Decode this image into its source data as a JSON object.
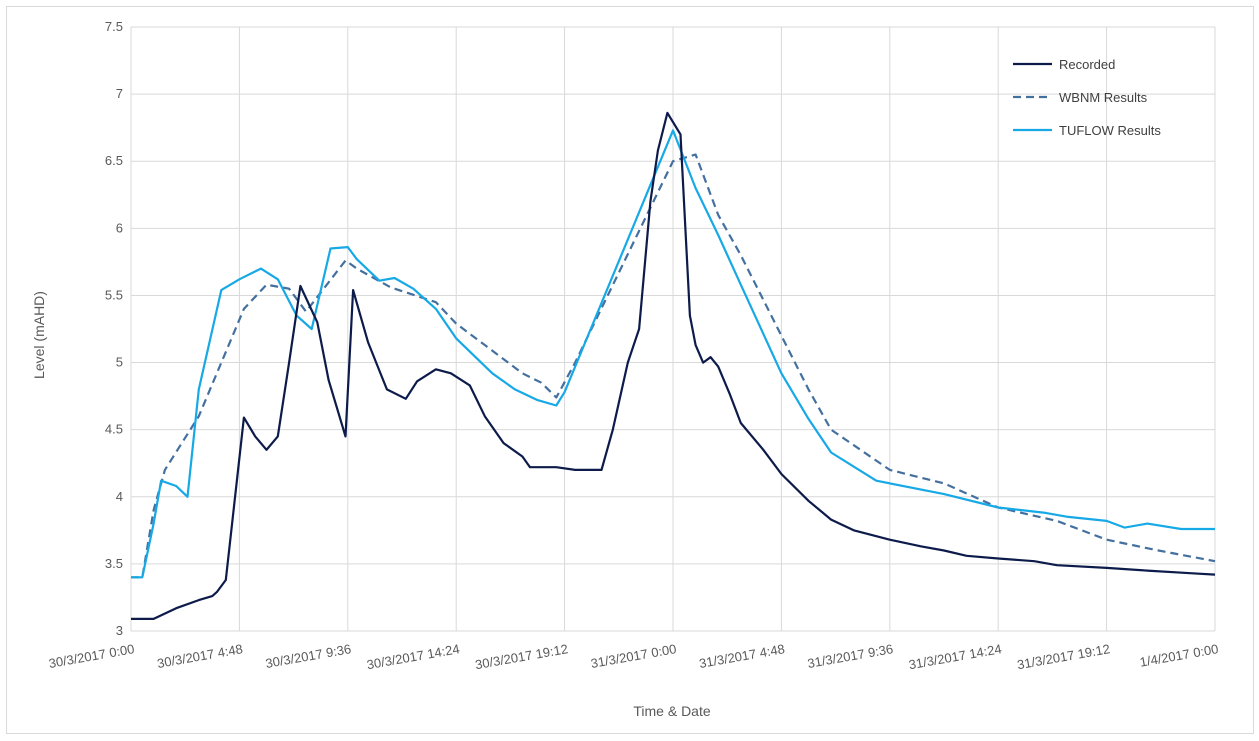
{
  "chart_data": {
    "type": "line",
    "xlabel": "Time & Date",
    "ylabel": "Level (mAHD)",
    "ylim": [
      3,
      7.5
    ],
    "yticks": [
      "3",
      "3.5",
      "4",
      "4.5",
      "5",
      "5.5",
      "6",
      "6.5",
      "7",
      "7.5"
    ],
    "xlim": [
      "30/3/2017 0:00",
      "1/4/2017 0:00"
    ],
    "xtick_labels": [
      "30/3/2017 0:00",
      "30/3/2017 4:48",
      "30/3/2017 9:36",
      "30/3/2017 14:24",
      "30/3/2017 19:12",
      "31/3/2017 0:00",
      "31/3/2017 4:48",
      "31/3/2017 9:36",
      "31/3/2017 14:24",
      "31/3/2017 19:12",
      "1/4/2017 0:00"
    ],
    "grid": true,
    "legend_position": "top-right",
    "series": [
      {
        "name": "Recorded",
        "color": "#0d1b4b",
        "style": "solid",
        "x": [
          "30/3/2017 0:00",
          "30/3/2017 1:00",
          "30/3/2017 2:00",
          "30/3/2017 3:00",
          "30/3/2017 3:36",
          "30/3/2017 3:48",
          "30/3/2017 4:12",
          "30/3/2017 5:00",
          "30/3/2017 5:30",
          "30/3/2017 6:00",
          "30/3/2017 6:30",
          "30/3/2017 7:00",
          "30/3/2017 7:30",
          "30/3/2017 8:15",
          "30/3/2017 8:45",
          "30/3/2017 9:30",
          "30/3/2017 9:50",
          "30/3/2017 10:30",
          "30/3/2017 11:20",
          "30/3/2017 12:10",
          "30/3/2017 12:40",
          "30/3/2017 13:30",
          "30/3/2017 14:10",
          "30/3/2017 15:00",
          "30/3/2017 15:40",
          "30/3/2017 16:30",
          "30/3/2017 17:20",
          "30/3/2017 17:40",
          "30/3/2017 18:50",
          "30/3/2017 19:40",
          "30/3/2017 20:50",
          "30/3/2017 21:20",
          "30/3/2017 22:00",
          "30/3/2017 22:30",
          "30/3/2017 23:00",
          "30/3/2017 23:20",
          "30/3/2017 23:45",
          "31/3/2017 0:20",
          "31/3/2017 0:45",
          "31/3/2017 1:00",
          "31/3/2017 1:20",
          "31/3/2017 1:40",
          "31/3/2017 2:00",
          "31/3/2017 2:30",
          "31/3/2017 3:00",
          "31/3/2017 4:00",
          "31/3/2017 4:48",
          "31/3/2017 6:00",
          "31/3/2017 7:00",
          "31/3/2017 8:00",
          "31/3/2017 9:36",
          "31/3/2017 11:00",
          "31/3/2017 12:00",
          "31/3/2017 13:00",
          "31/3/2017 14:24",
          "31/3/2017 16:00",
          "31/3/2017 17:00",
          "31/3/2017 19:12",
          "31/3/2017 21:00",
          "31/3/2017 23:00",
          "1/4/2017 0:00"
        ],
        "y": [
          3.09,
          3.09,
          3.17,
          3.23,
          3.26,
          3.29,
          3.38,
          4.59,
          4.45,
          4.35,
          4.45,
          5.0,
          5.57,
          5.3,
          4.87,
          4.45,
          5.54,
          5.15,
          4.8,
          4.73,
          4.86,
          4.95,
          4.92,
          4.83,
          4.6,
          4.4,
          4.3,
          4.22,
          4.22,
          4.2,
          4.2,
          4.5,
          5.0,
          5.25,
          6.2,
          6.58,
          6.86,
          6.7,
          5.35,
          5.13,
          5.0,
          5.04,
          4.97,
          4.77,
          4.55,
          4.35,
          4.17,
          3.97,
          3.83,
          3.75,
          3.68,
          3.63,
          3.6,
          3.56,
          3.54,
          3.52,
          3.49,
          3.47,
          3.45,
          3.43,
          3.42
        ]
      },
      {
        "name": "WBNM Results",
        "color": "#44709f",
        "style": "dashed",
        "x": [
          "30/3/2017 0:00",
          "30/3/2017 0:30",
          "30/3/2017 1:00",
          "30/3/2017 1:30",
          "30/3/2017 3:00",
          "30/3/2017 5:00",
          "30/3/2017 6:00",
          "30/3/2017 7:00",
          "30/3/2017 7:45",
          "30/3/2017 9:30",
          "30/3/2017 10:00",
          "30/3/2017 11:30",
          "30/3/2017 13:30",
          "30/3/2017 14:24",
          "30/3/2017 17:20",
          "30/3/2017 18:10",
          "30/3/2017 18:50",
          "30/3/2017 19:40",
          "31/3/2017 0:00",
          "31/3/2017 1:00",
          "31/3/2017 2:00",
          "31/3/2017 3:00",
          "31/3/2017 4:48",
          "31/3/2017 6:00",
          "31/3/2017 7:00",
          "31/3/2017 9:36",
          "31/3/2017 12:00",
          "31/3/2017 14:24",
          "31/3/2017 17:00",
          "31/3/2017 19:12",
          "31/3/2017 21:30",
          "1/4/2017 0:00"
        ],
        "y": [
          3.4,
          3.4,
          3.9,
          4.2,
          4.6,
          5.4,
          5.58,
          5.55,
          5.38,
          5.76,
          5.7,
          5.56,
          5.45,
          5.29,
          4.92,
          4.85,
          4.74,
          5.0,
          6.5,
          6.55,
          6.1,
          5.8,
          5.2,
          4.8,
          4.5,
          4.2,
          4.1,
          3.92,
          3.82,
          3.68,
          3.6,
          3.52
        ]
      },
      {
        "name": "TUFLOW Results",
        "color": "#17a9e6",
        "style": "solid",
        "x": [
          "30/3/2017 0:00",
          "30/3/2017 0:30",
          "30/3/2017 1:00",
          "30/3/2017 1:20",
          "30/3/2017 2:00",
          "30/3/2017 2:30",
          "30/3/2017 3:00",
          "30/3/2017 4:00",
          "30/3/2017 4:48",
          "30/3/2017 5:45",
          "30/3/2017 6:30",
          "30/3/2017 7:20",
          "30/3/2017 8:00",
          "30/3/2017 8:50",
          "30/3/2017 9:36",
          "30/3/2017 10:00",
          "30/3/2017 11:00",
          "30/3/2017 11:40",
          "30/3/2017 12:30",
          "30/3/2017 13:30",
          "30/3/2017 14:24",
          "30/3/2017 16:00",
          "30/3/2017 17:00",
          "30/3/2017 18:00",
          "30/3/2017 18:50",
          "30/3/2017 19:12",
          "31/3/2017 0:00",
          "31/3/2017 1:00",
          "31/3/2017 2:00",
          "31/3/2017 3:00",
          "31/3/2017 4:48",
          "31/3/2017 6:00",
          "31/3/2017 7:00",
          "31/3/2017 9:00",
          "31/3/2017 12:00",
          "31/3/2017 14:24",
          "31/3/2017 16:30",
          "31/3/2017 17:30",
          "31/3/2017 19:12",
          "31/3/2017 20:00",
          "31/3/2017 21:00",
          "31/3/2017 22:30",
          "1/4/2017 0:00"
        ],
        "y": [
          3.4,
          3.4,
          3.8,
          4.12,
          4.08,
          4.0,
          4.8,
          5.54,
          5.62,
          5.7,
          5.62,
          5.35,
          5.25,
          5.85,
          5.86,
          5.77,
          5.61,
          5.63,
          5.55,
          5.4,
          5.18,
          4.92,
          4.8,
          4.72,
          4.68,
          4.78,
          6.73,
          6.3,
          5.95,
          5.58,
          4.92,
          4.58,
          4.33,
          4.12,
          4.02,
          3.92,
          3.88,
          3.85,
          3.82,
          3.77,
          3.8,
          3.76,
          3.76
        ]
      }
    ]
  }
}
